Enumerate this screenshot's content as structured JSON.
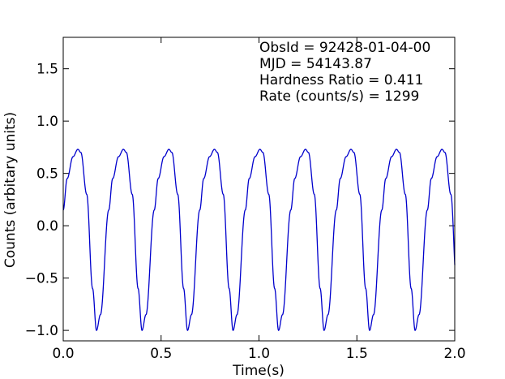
{
  "chart_data": {
    "type": "line",
    "xlabel": "Time(s)",
    "ylabel": "Counts (arbitary units)",
    "xlim": [
      0.0,
      2.0
    ],
    "ylim": [
      -1.1,
      1.8
    ],
    "x_ticks": [
      0.0,
      0.5,
      1.0,
      1.5,
      2.0
    ],
    "x_tick_labels": [
      "0.0",
      "0.5",
      "1.0",
      "1.5",
      "2.0"
    ],
    "y_ticks": [
      -1.0,
      -0.5,
      0.0,
      0.5,
      1.0,
      1.5
    ],
    "y_tick_labels": [
      "−1.0",
      "−0.5",
      "0.0",
      "0.5",
      "1.0",
      "1.5"
    ],
    "grid": false,
    "line_color": "#0000cc",
    "series": [
      {
        "period": 0.2325,
        "y_max": 0.73,
        "y_min": -1.0,
        "x": [
          0.0,
          0.02,
          0.05,
          0.075,
          0.09,
          0.12,
          0.15,
          0.17,
          0.19,
          0.2325
        ],
        "y": [
          0.15,
          0.45,
          0.66,
          0.73,
          0.7,
          0.3,
          -0.6,
          -1.0,
          -0.85,
          0.15
        ]
      }
    ],
    "annotations": [
      "ObsId = 92428-01-04-00",
      "MJD = 54143.87",
      "Hardness Ratio = 0.411",
      "Rate (counts/s) = 1299"
    ]
  }
}
